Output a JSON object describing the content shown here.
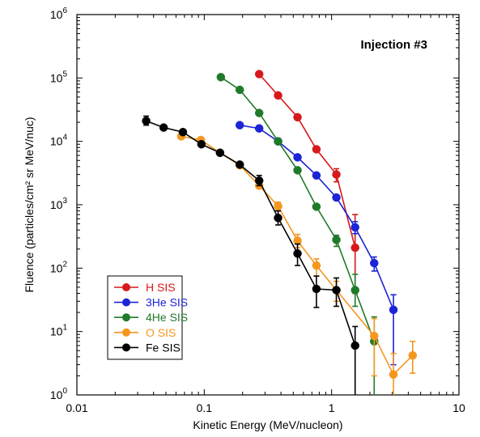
{
  "chart_data": {
    "type": "scatter",
    "annotation": "Injection #3",
    "xlabel": "Kinetic Energy (MeV/nucleon)",
    "ylabel": "Fluence (particles/cm² sr MeV/nuc)",
    "xscale": "log",
    "yscale": "log",
    "xlim": [
      0.01,
      10
    ],
    "ylim": [
      1,
      1000000
    ],
    "grid": false,
    "legend_position": "lower-left",
    "x_ticks": [
      {
        "value": 0.01,
        "label": "0.01"
      },
      {
        "value": 0.1,
        "label": "0.1"
      },
      {
        "value": 1,
        "label": "1"
      },
      {
        "value": 10,
        "label": "10"
      }
    ],
    "y_ticks": [
      {
        "value": 1,
        "base": "10",
        "exp": "0"
      },
      {
        "value": 10,
        "base": "10",
        "exp": "1"
      },
      {
        "value": 100,
        "base": "10",
        "exp": "2"
      },
      {
        "value": 1000,
        "base": "10",
        "exp": "3"
      },
      {
        "value": 10000,
        "base": "10",
        "exp": "4"
      },
      {
        "value": 100000,
        "base": "10",
        "exp": "5"
      },
      {
        "value": 1000000,
        "base": "10",
        "exp": "6"
      }
    ],
    "series": [
      {
        "name": "H SIS",
        "color": "#d7191c",
        "points": [
          {
            "x": 0.27,
            "y": 115000
          },
          {
            "x": 0.38,
            "y": 53000
          },
          {
            "x": 0.54,
            "y": 24000
          },
          {
            "x": 0.76,
            "y": 7500
          },
          {
            "x": 1.09,
            "y": 3000,
            "lo": 2300,
            "hi": 3700
          },
          {
            "x": 1.53,
            "y": 210,
            "lo": 40,
            "hi": 700
          }
        ]
      },
      {
        "name": "3He SIS",
        "color": "#1b24d6",
        "points": [
          {
            "x": 0.19,
            "y": 18000
          },
          {
            "x": 0.27,
            "y": 16000
          },
          {
            "x": 0.38,
            "y": 10000
          },
          {
            "x": 0.54,
            "y": 5600
          },
          {
            "x": 0.76,
            "y": 2900
          },
          {
            "x": 1.09,
            "y": 1300
          },
          {
            "x": 1.53,
            "y": 440,
            "lo": 350,
            "hi": 540
          },
          {
            "x": 2.16,
            "y": 120,
            "lo": 90,
            "hi": 150
          },
          {
            "x": 3.06,
            "y": 22,
            "lo": 3,
            "hi": 38
          }
        ]
      },
      {
        "name": "4He SIS",
        "color": "#1f7a2a",
        "points": [
          {
            "x": 0.135,
            "y": 103000
          },
          {
            "x": 0.19,
            "y": 65000
          },
          {
            "x": 0.27,
            "y": 28000
          },
          {
            "x": 0.38,
            "y": 10000
          },
          {
            "x": 0.54,
            "y": 3500
          },
          {
            "x": 0.76,
            "y": 930
          },
          {
            "x": 1.09,
            "y": 280,
            "lo": 220,
            "hi": 330
          },
          {
            "x": 1.53,
            "y": 45,
            "lo": 25,
            "hi": 80
          },
          {
            "x": 2.16,
            "y": 7,
            "lo": 1,
            "hi": 17
          }
        ]
      },
      {
        "name": "O SIS",
        "color": "#f5961e",
        "points": [
          {
            "x": 0.066,
            "y": 12000
          },
          {
            "x": 0.094,
            "y": 10500
          },
          {
            "x": 0.133,
            "y": 6600
          },
          {
            "x": 0.19,
            "y": 4200
          },
          {
            "x": 0.27,
            "y": 2000
          },
          {
            "x": 0.38,
            "y": 950,
            "lo": 800,
            "hi": 1100
          },
          {
            "x": 0.54,
            "y": 270,
            "lo": 210,
            "hi": 340
          },
          {
            "x": 0.76,
            "y": 110,
            "lo": 75,
            "hi": 140
          },
          {
            "x": 1.09,
            "y": 45,
            "lo": 30,
            "hi": 62
          },
          {
            "x": 2.16,
            "y": 8.5,
            "lo": 2,
            "hi": 16
          },
          {
            "x": 3.06,
            "y": 2.1,
            "lo": 1,
            "hi": 4.5
          },
          {
            "x": 4.33,
            "y": 4.2,
            "lo": 2.2,
            "hi": 7
          }
        ]
      },
      {
        "name": "Fe SIS",
        "color": "#000000",
        "points": [
          {
            "x": 0.035,
            "y": 21000,
            "lo": 18000,
            "hi": 25000
          },
          {
            "x": 0.048,
            "y": 16500
          },
          {
            "x": 0.068,
            "y": 14000
          },
          {
            "x": 0.095,
            "y": 9000
          },
          {
            "x": 0.133,
            "y": 6600
          },
          {
            "x": 0.19,
            "y": 4300
          },
          {
            "x": 0.27,
            "y": 2400,
            "lo": 2000,
            "hi": 2900
          },
          {
            "x": 0.38,
            "y": 620,
            "lo": 480,
            "hi": 800
          },
          {
            "x": 0.54,
            "y": 170,
            "lo": 110,
            "hi": 240
          },
          {
            "x": 0.76,
            "y": 47,
            "lo": 24,
            "hi": 75
          },
          {
            "x": 1.09,
            "y": 45,
            "lo": 25,
            "hi": 70
          },
          {
            "x": 1.53,
            "y": 6,
            "lo": 1,
            "hi": 12
          }
        ]
      }
    ]
  }
}
